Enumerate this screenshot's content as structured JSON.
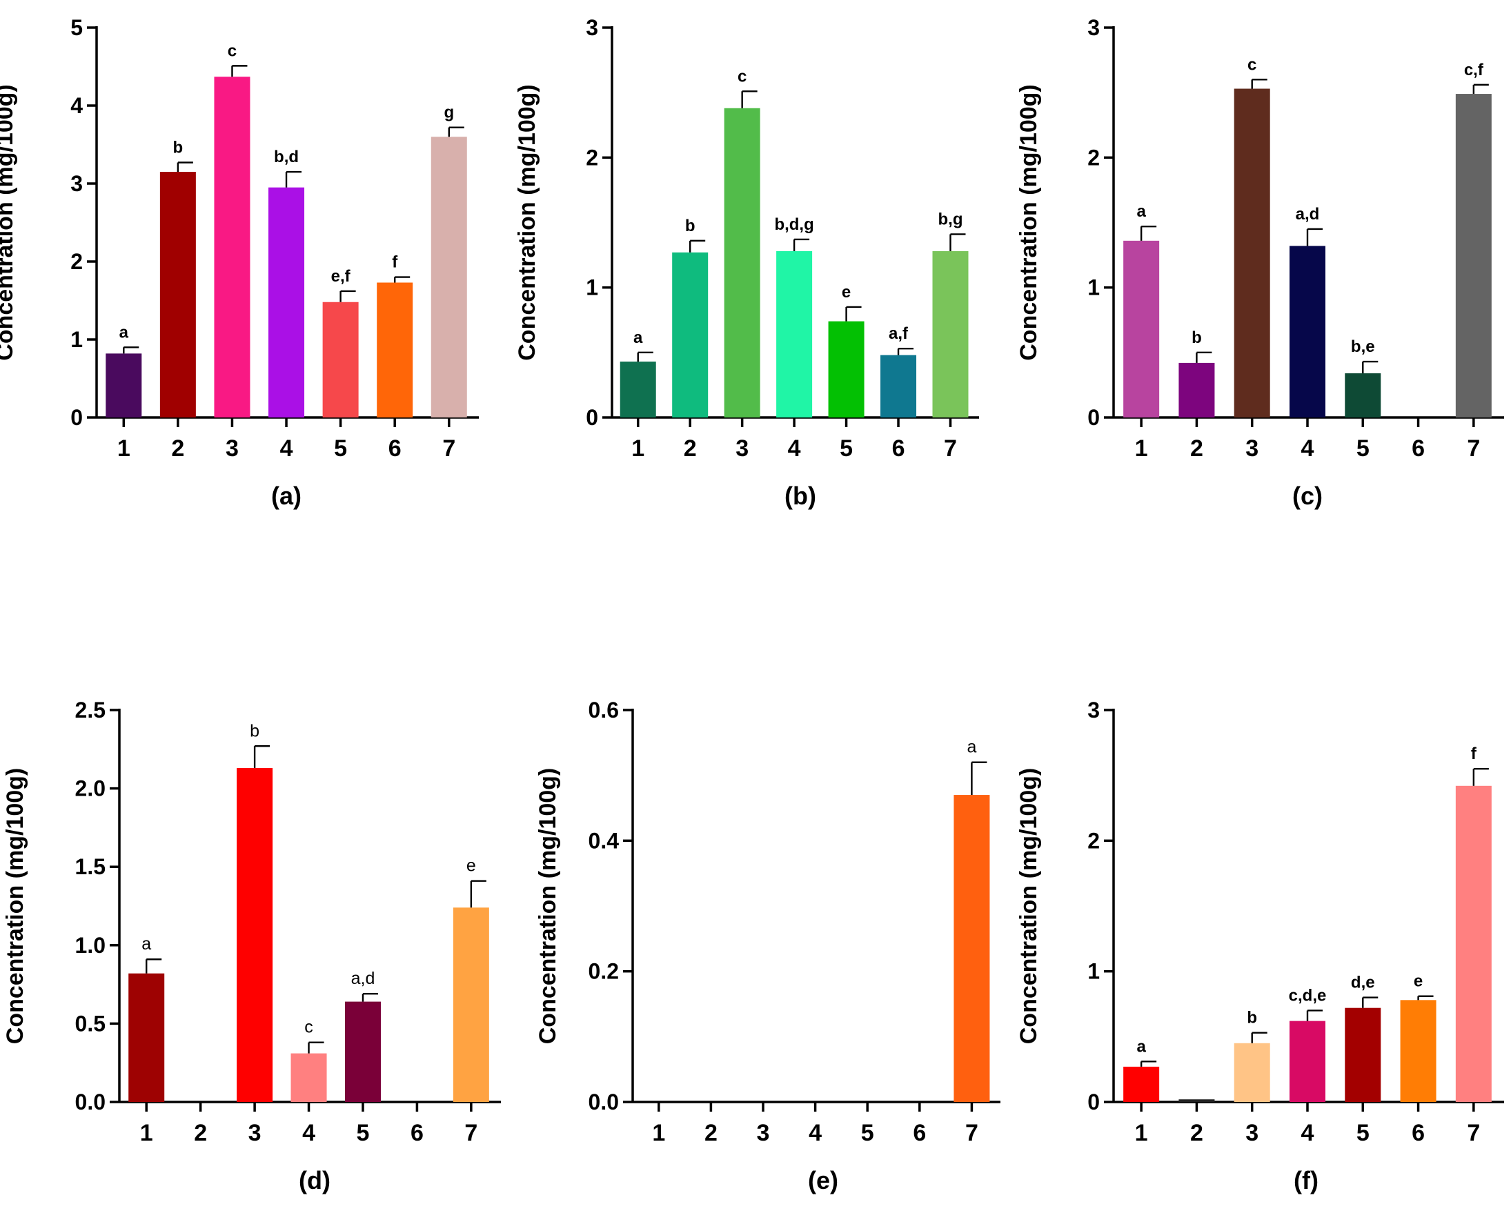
{
  "charts": [
    {
      "panel_label": "(a)",
      "ylabel": "Concentration (mg/100g)",
      "sig_bold": true,
      "yticks": [
        "0",
        "1",
        "2",
        "3",
        "4",
        "5"
      ],
      "chart_data": {
        "type": "bar",
        "categories": [
          "1",
          "2",
          "3",
          "4",
          "5",
          "6",
          "7"
        ],
        "values": [
          0.82,
          3.15,
          4.37,
          2.95,
          1.48,
          1.73,
          3.6
        ],
        "errors": [
          0.08,
          0.12,
          0.14,
          0.2,
          0.14,
          0.07,
          0.12
        ],
        "sig_letters": [
          "a",
          "b",
          "c",
          "b,d",
          "e,f",
          "f",
          "g"
        ],
        "colors": [
          "#4a0a5e",
          "#a00000",
          "#f91984",
          "#aa10e6",
          "#f6484b",
          "#ff6608",
          "#d8b0ac"
        ],
        "ylim": [
          0,
          5
        ]
      }
    },
    {
      "panel_label": "(b)",
      "ylabel": "Concentration (mg/100g)",
      "sig_bold": true,
      "yticks": [
        "0",
        "1",
        "2",
        "3"
      ],
      "chart_data": {
        "type": "bar",
        "categories": [
          "1",
          "2",
          "3",
          "4",
          "5",
          "6",
          "7"
        ],
        "values": [
          0.43,
          1.27,
          2.38,
          1.28,
          0.74,
          0.48,
          1.28
        ],
        "errors": [
          0.07,
          0.09,
          0.13,
          0.09,
          0.11,
          0.05,
          0.13
        ],
        "sig_letters": [
          "a",
          "b",
          "c",
          "b,d,g",
          "e",
          "a,f",
          "b,g"
        ],
        "colors": [
          "#0f7150",
          "#0fbb7e",
          "#52bc4a",
          "#20f5a6",
          "#03c003",
          "#0f7890",
          "#7ac45a"
        ],
        "ylim": [
          0,
          3
        ]
      }
    },
    {
      "panel_label": "(c)",
      "ylabel": "Concentration (mg/100g)",
      "sig_bold": true,
      "yticks": [
        "0",
        "1",
        "2",
        "3"
      ],
      "chart_data": {
        "type": "bar",
        "categories": [
          "1",
          "2",
          "3",
          "4",
          "5",
          "6",
          "7"
        ],
        "values": [
          1.36,
          0.42,
          2.53,
          1.32,
          0.34,
          0,
          2.49
        ],
        "errors": [
          0.11,
          0.08,
          0.07,
          0.13,
          0.09,
          0,
          0.07
        ],
        "sig_letters": [
          "a",
          "b",
          "c",
          "a,d",
          "b,e",
          "",
          "c,f"
        ],
        "colors": [
          "#b8449f",
          "#7d057e",
          "#5f2c1e",
          "#06074a",
          "#0e4a35",
          "#ffffff",
          "#646464"
        ],
        "ylim": [
          0,
          3
        ]
      }
    },
    {
      "panel_label": "(d)",
      "ylabel": "Concentration (mg/100g)",
      "sig_bold": false,
      "yticks": [
        "0.0",
        "0.5",
        "1.0",
        "1.5",
        "2.0",
        "2.5"
      ],
      "chart_data": {
        "type": "bar",
        "categories": [
          "1",
          "2",
          "3",
          "4",
          "5",
          "6",
          "7"
        ],
        "values": [
          0.82,
          0,
          2.13,
          0.31,
          0.64,
          0,
          1.24
        ],
        "errors": [
          0.09,
          0,
          0.14,
          0.07,
          0.05,
          0,
          0.17
        ],
        "sig_letters": [
          "a",
          "",
          "b",
          "c",
          "a,d",
          "",
          "e"
        ],
        "colors": [
          "#9e0202",
          "#ffffff",
          "#fe0000",
          "#ff8080",
          "#7a0038",
          "#ffffff",
          "#ffa342"
        ],
        "ylim": [
          0,
          2.5
        ]
      }
    },
    {
      "panel_label": "(e)",
      "ylabel": "Concentration (mg/100g)",
      "sig_bold": false,
      "yticks": [
        "0.0",
        "0.2",
        "0.4",
        "0.6"
      ],
      "chart_data": {
        "type": "bar",
        "categories": [
          "1",
          "2",
          "3",
          "4",
          "5",
          "6",
          "7"
        ],
        "values": [
          0,
          0,
          0,
          0,
          0,
          0,
          0.47
        ],
        "errors": [
          0,
          0,
          0,
          0,
          0,
          0,
          0.05
        ],
        "sig_letters": [
          "",
          "",
          "",
          "",
          "",
          "",
          "a"
        ],
        "colors": [
          "#ffffff",
          "#ffffff",
          "#ffffff",
          "#ffffff",
          "#ffffff",
          "#ffffff",
          "#ff600f"
        ],
        "ylim": [
          0,
          0.6
        ]
      }
    },
    {
      "panel_label": "(f)",
      "ylabel": "Concentration (mg/100g)",
      "sig_bold": true,
      "yticks": [
        "0",
        "1",
        "2",
        "3"
      ],
      "chart_data": {
        "type": "bar",
        "categories": [
          "1",
          "2",
          "3",
          "4",
          "5",
          "6",
          "7"
        ],
        "values": [
          0.27,
          0.02,
          0.45,
          0.62,
          0.72,
          0.78,
          2.42
        ],
        "errors": [
          0.04,
          0,
          0.08,
          0.08,
          0.08,
          0.03,
          0.13
        ],
        "sig_letters": [
          "a",
          "",
          "b",
          "c,d,e",
          "d,e",
          "e",
          "f"
        ],
        "colors": [
          "#ff0000",
          "#222222",
          "#ffc486",
          "#d80a64",
          "#a30000",
          "#ff7d05",
          "#ff8080"
        ],
        "ylim": [
          0,
          3
        ]
      }
    }
  ]
}
